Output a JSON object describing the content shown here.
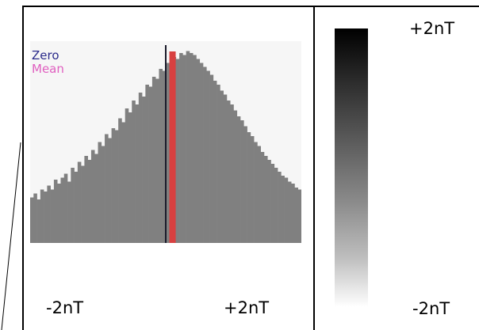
{
  "chart_data": {
    "type": "bar",
    "title": "",
    "xlabel": "",
    "ylabel": "",
    "x_tick_labels": [
      "-2nT",
      "+2nT"
    ],
    "xlim": [
      -2,
      2
    ],
    "units": "nT",
    "legend": [
      {
        "label": "Zero",
        "color": "#2a2a8a"
      },
      {
        "label": "Mean",
        "color": "#e060c0"
      }
    ],
    "bin_counts_relative": [
      0.23,
      0.25,
      0.22,
      0.27,
      0.26,
      0.29,
      0.27,
      0.32,
      0.3,
      0.33,
      0.35,
      0.31,
      0.38,
      0.36,
      0.41,
      0.39,
      0.44,
      0.42,
      0.47,
      0.45,
      0.51,
      0.49,
      0.55,
      0.53,
      0.58,
      0.57,
      0.63,
      0.61,
      0.68,
      0.66,
      0.72,
      0.7,
      0.76,
      0.74,
      0.8,
      0.79,
      0.84,
      0.83,
      0.88,
      0.87,
      0.91,
      0.9,
      0.94,
      0.93,
      0.96,
      0.95,
      0.97,
      0.96,
      0.95,
      0.93,
      0.91,
      0.89,
      0.87,
      0.85,
      0.82,
      0.8,
      0.77,
      0.75,
      0.72,
      0.7,
      0.67,
      0.64,
      0.62,
      0.59,
      0.56,
      0.54,
      0.51,
      0.49,
      0.46,
      0.44,
      0.42,
      0.4,
      0.38,
      0.36,
      0.34,
      0.33,
      0.31,
      0.3,
      0.28,
      0.27
    ],
    "zero": 0,
    "mean": 0.1,
    "colorbar": {
      "max_label": "+2nT",
      "min_label": "-2nT",
      "colors": [
        "#000000",
        "#ffffff"
      ]
    }
  }
}
